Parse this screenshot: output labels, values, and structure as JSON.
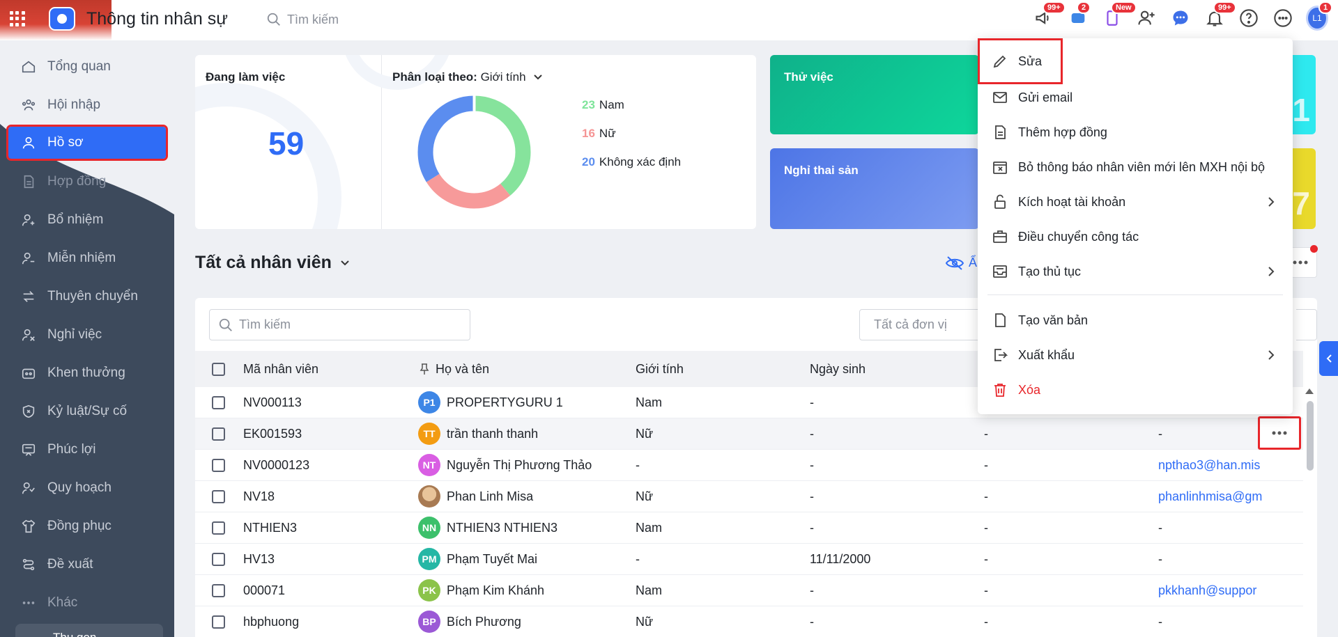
{
  "header": {
    "app_title": "Thông tin nhân sự",
    "search_placeholder": "Tìm kiếm",
    "badges": {
      "megaphone": "99+",
      "cart": "2",
      "phone": "New",
      "bell": "99+",
      "avatar": "1"
    },
    "avatar_initials": "L1"
  },
  "sidebar": {
    "items": [
      {
        "label": "Tổng quan",
        "icon": "home-icon"
      },
      {
        "label": "Hội nhập",
        "icon": "people-icon"
      },
      {
        "label": "Hồ sơ",
        "icon": "user-icon"
      },
      {
        "label": "Hợp đồng",
        "icon": "document-icon"
      },
      {
        "label": "Bổ nhiệm",
        "icon": "user-plus-icon"
      },
      {
        "label": "Miễn nhiệm",
        "icon": "user-minus-icon"
      },
      {
        "label": "Thuyên chuyển",
        "icon": "transfer-icon"
      },
      {
        "label": "Nghỉ việc",
        "icon": "user-x-icon"
      },
      {
        "label": "Khen thưởng",
        "icon": "gift-icon"
      },
      {
        "label": "Kỷ luật/Sự cố",
        "icon": "shield-icon"
      },
      {
        "label": "Phúc lợi",
        "icon": "benefit-icon"
      },
      {
        "label": "Quy hoạch",
        "icon": "planning-icon"
      },
      {
        "label": "Đồng phục",
        "icon": "shirt-icon"
      },
      {
        "label": "Đề xuất",
        "icon": "proposal-icon"
      },
      {
        "label": "Khác",
        "icon": "more-icon"
      }
    ],
    "collapse_label": "Thu gọn"
  },
  "stats": {
    "working_label": "Đang làm việc",
    "working_count": "59",
    "classify_label": "Phân loại theo:",
    "classify_value": "Giới tính",
    "legend": [
      {
        "count": "23",
        "label": "Nam",
        "color": "#7ee49a"
      },
      {
        "count": "16",
        "label": "Nữ",
        "color": "#f59595"
      },
      {
        "count": "20",
        "label": "Không xác định",
        "color": "#5b8def"
      }
    ],
    "kpi_green_label": "Thử việc",
    "kpi_blue_label": "Nghỉ thai sản",
    "kpi_cyan_digit": "1",
    "kpi_yellow_digit": "7"
  },
  "list": {
    "title": "Tất cả nhân viên",
    "eye_label": "Ẩ",
    "search_placeholder": "Tìm kiếm",
    "unit_placeholder": "Tất cả đơn vị",
    "columns": [
      "Mã nhân viên",
      "Họ và tên",
      "Giới tính",
      "Ngày sinh"
    ],
    "rows": [
      {
        "code": "NV000113",
        "initials": "P1",
        "color": "#3d86e6",
        "name": "PROPERTYGURU 1",
        "gender": "Nam",
        "dob": "-",
        "x": "",
        "mail": ""
      },
      {
        "code": "EK001593",
        "initials": "TT",
        "color": "#f39c12",
        "name": "trần thanh thanh",
        "gender": "Nữ",
        "dob": "-",
        "x": "-",
        "mail": "-"
      },
      {
        "code": "NV0000123",
        "initials": "NT",
        "color": "#d95ee3",
        "name": "Nguyễn Thị Phương Thảo",
        "gender": "-",
        "dob": "-",
        "x": "-",
        "mail": "npthao3@han.mis"
      },
      {
        "code": "NV18",
        "initials": "",
        "color": "#c9a27a",
        "name": "Phan Linh Misa",
        "gender": "Nữ",
        "dob": "-",
        "x": "-",
        "mail": "phanlinhmisa@gm"
      },
      {
        "code": "NTHIEN3",
        "initials": "NN",
        "color": "#3cc06b",
        "name": "NTHIEN3 NTHIEN3",
        "gender": "Nam",
        "dob": "-",
        "x": "-",
        "mail": "-"
      },
      {
        "code": "HV13",
        "initials": "PM",
        "color": "#25b7a5",
        "name": "Phạm Tuyết Mai",
        "gender": "-",
        "dob": "11/11/2000",
        "x": "-",
        "mail": "-"
      },
      {
        "code": "000071",
        "initials": "PK",
        "color": "#8bc34a",
        "name": "Phạm Kim Khánh",
        "gender": "Nam",
        "dob": "-",
        "x": "-",
        "mail": "pkkhanh@suppor"
      },
      {
        "code": "hbphuong",
        "initials": "BP",
        "color": "#9b59d6",
        "name": "Bích Phương",
        "gender": "Nữ",
        "dob": "-",
        "x": "-",
        "mail": "-"
      }
    ]
  },
  "context_menu": {
    "items": [
      {
        "label": "Sửa",
        "icon": "pencil-icon"
      },
      {
        "label": "Gửi email",
        "icon": "mail-icon"
      },
      {
        "label": "Thêm hợp đồng",
        "icon": "document-icon"
      },
      {
        "label": "Bỏ thông báo nhân viên mới lên MXH nội bộ",
        "icon": "calendar-x-icon"
      },
      {
        "label": "Kích hoạt tài khoản",
        "icon": "unlock-icon"
      },
      {
        "label": "Điều chuyển công tác",
        "icon": "briefcase-icon"
      },
      {
        "label": "Tạo thủ tục",
        "icon": "inbox-icon"
      },
      {
        "label": "Tạo văn bản",
        "icon": "file-icon"
      },
      {
        "label": "Xuất khẩu",
        "icon": "export-icon"
      },
      {
        "label": "Xóa",
        "icon": "trash-icon"
      }
    ]
  },
  "colors": {
    "accent": "#2f6cf6",
    "sidebar": "#3d4a5c",
    "danger": "#e8262b"
  }
}
